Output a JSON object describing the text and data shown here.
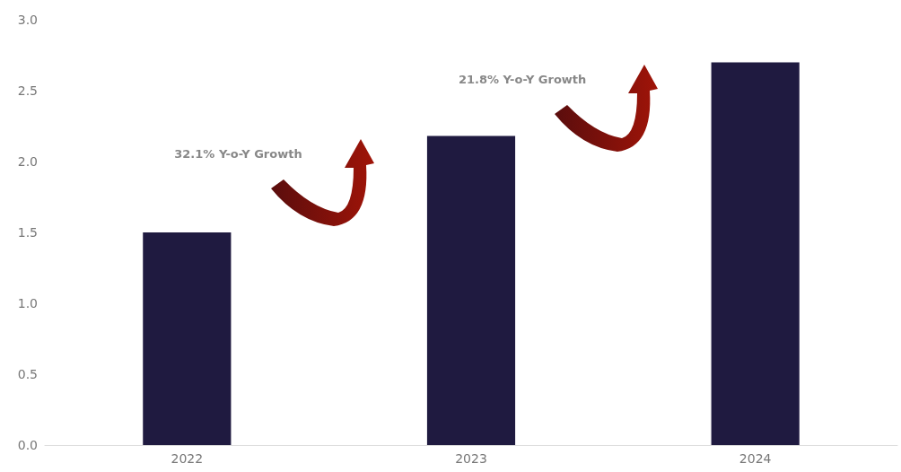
{
  "chart_data": {
    "type": "bar",
    "categories": [
      "2022",
      "2023",
      "2024"
    ],
    "values": [
      1.5,
      2.18,
      2.7
    ],
    "color": "#1f1a40",
    "ylim": [
      0,
      3
    ],
    "yticks": [
      {
        "value": 0,
        "label": "0.0"
      },
      {
        "value": 0.5,
        "label": "0.5"
      },
      {
        "value": 1,
        "label": "1.0"
      },
      {
        "value": 1.5,
        "label": "1.5"
      },
      {
        "value": 2,
        "label": "2.0"
      },
      {
        "value": 2.5,
        "label": "2.5"
      },
      {
        "value": 3,
        "label": "3.0"
      }
    ],
    "grid": false,
    "annotations": [
      "32.1% Y-o-Y Growth",
      "21.8% Y-o-Y Growth"
    ]
  }
}
